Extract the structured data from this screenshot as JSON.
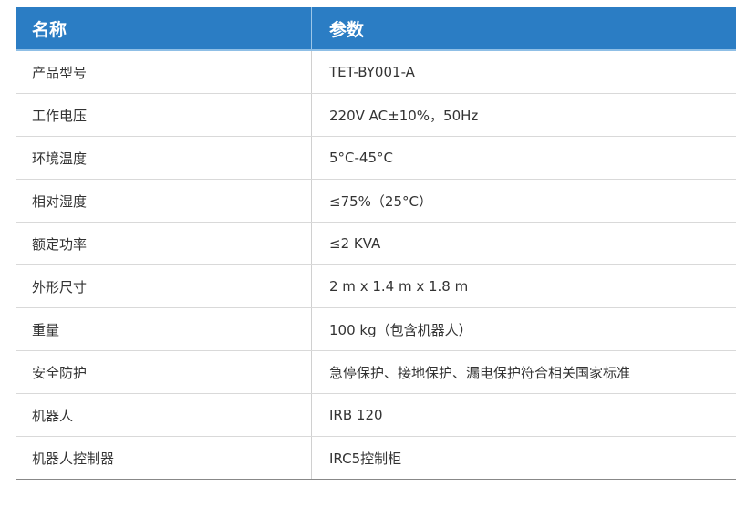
{
  "header": {
    "name": "名称",
    "param": "参数"
  },
  "rows": [
    {
      "name": "产品型号",
      "value": "TET-BY001-A"
    },
    {
      "name": "工作电压",
      "value": "220V AC±10%，50Hz"
    },
    {
      "name": "环境温度",
      "value": "5°C-45°C"
    },
    {
      "name": "相对湿度",
      "value": "≤75%（25°C）"
    },
    {
      "name": "额定功率",
      "value": "≤2 KVA"
    },
    {
      "name": "外形尺寸",
      "value": "2 m x 1.4 m x 1.8 m"
    },
    {
      "name": "重量",
      "value": "100 kg（包含机器人）"
    },
    {
      "name": "安全防护",
      "value": "急停保护、接地保护、漏电保护符合相关国家标准"
    },
    {
      "name": "机器人",
      "value": "IRB 120"
    },
    {
      "name": "机器人控制器",
      "value": "IRC5控制柜"
    }
  ]
}
